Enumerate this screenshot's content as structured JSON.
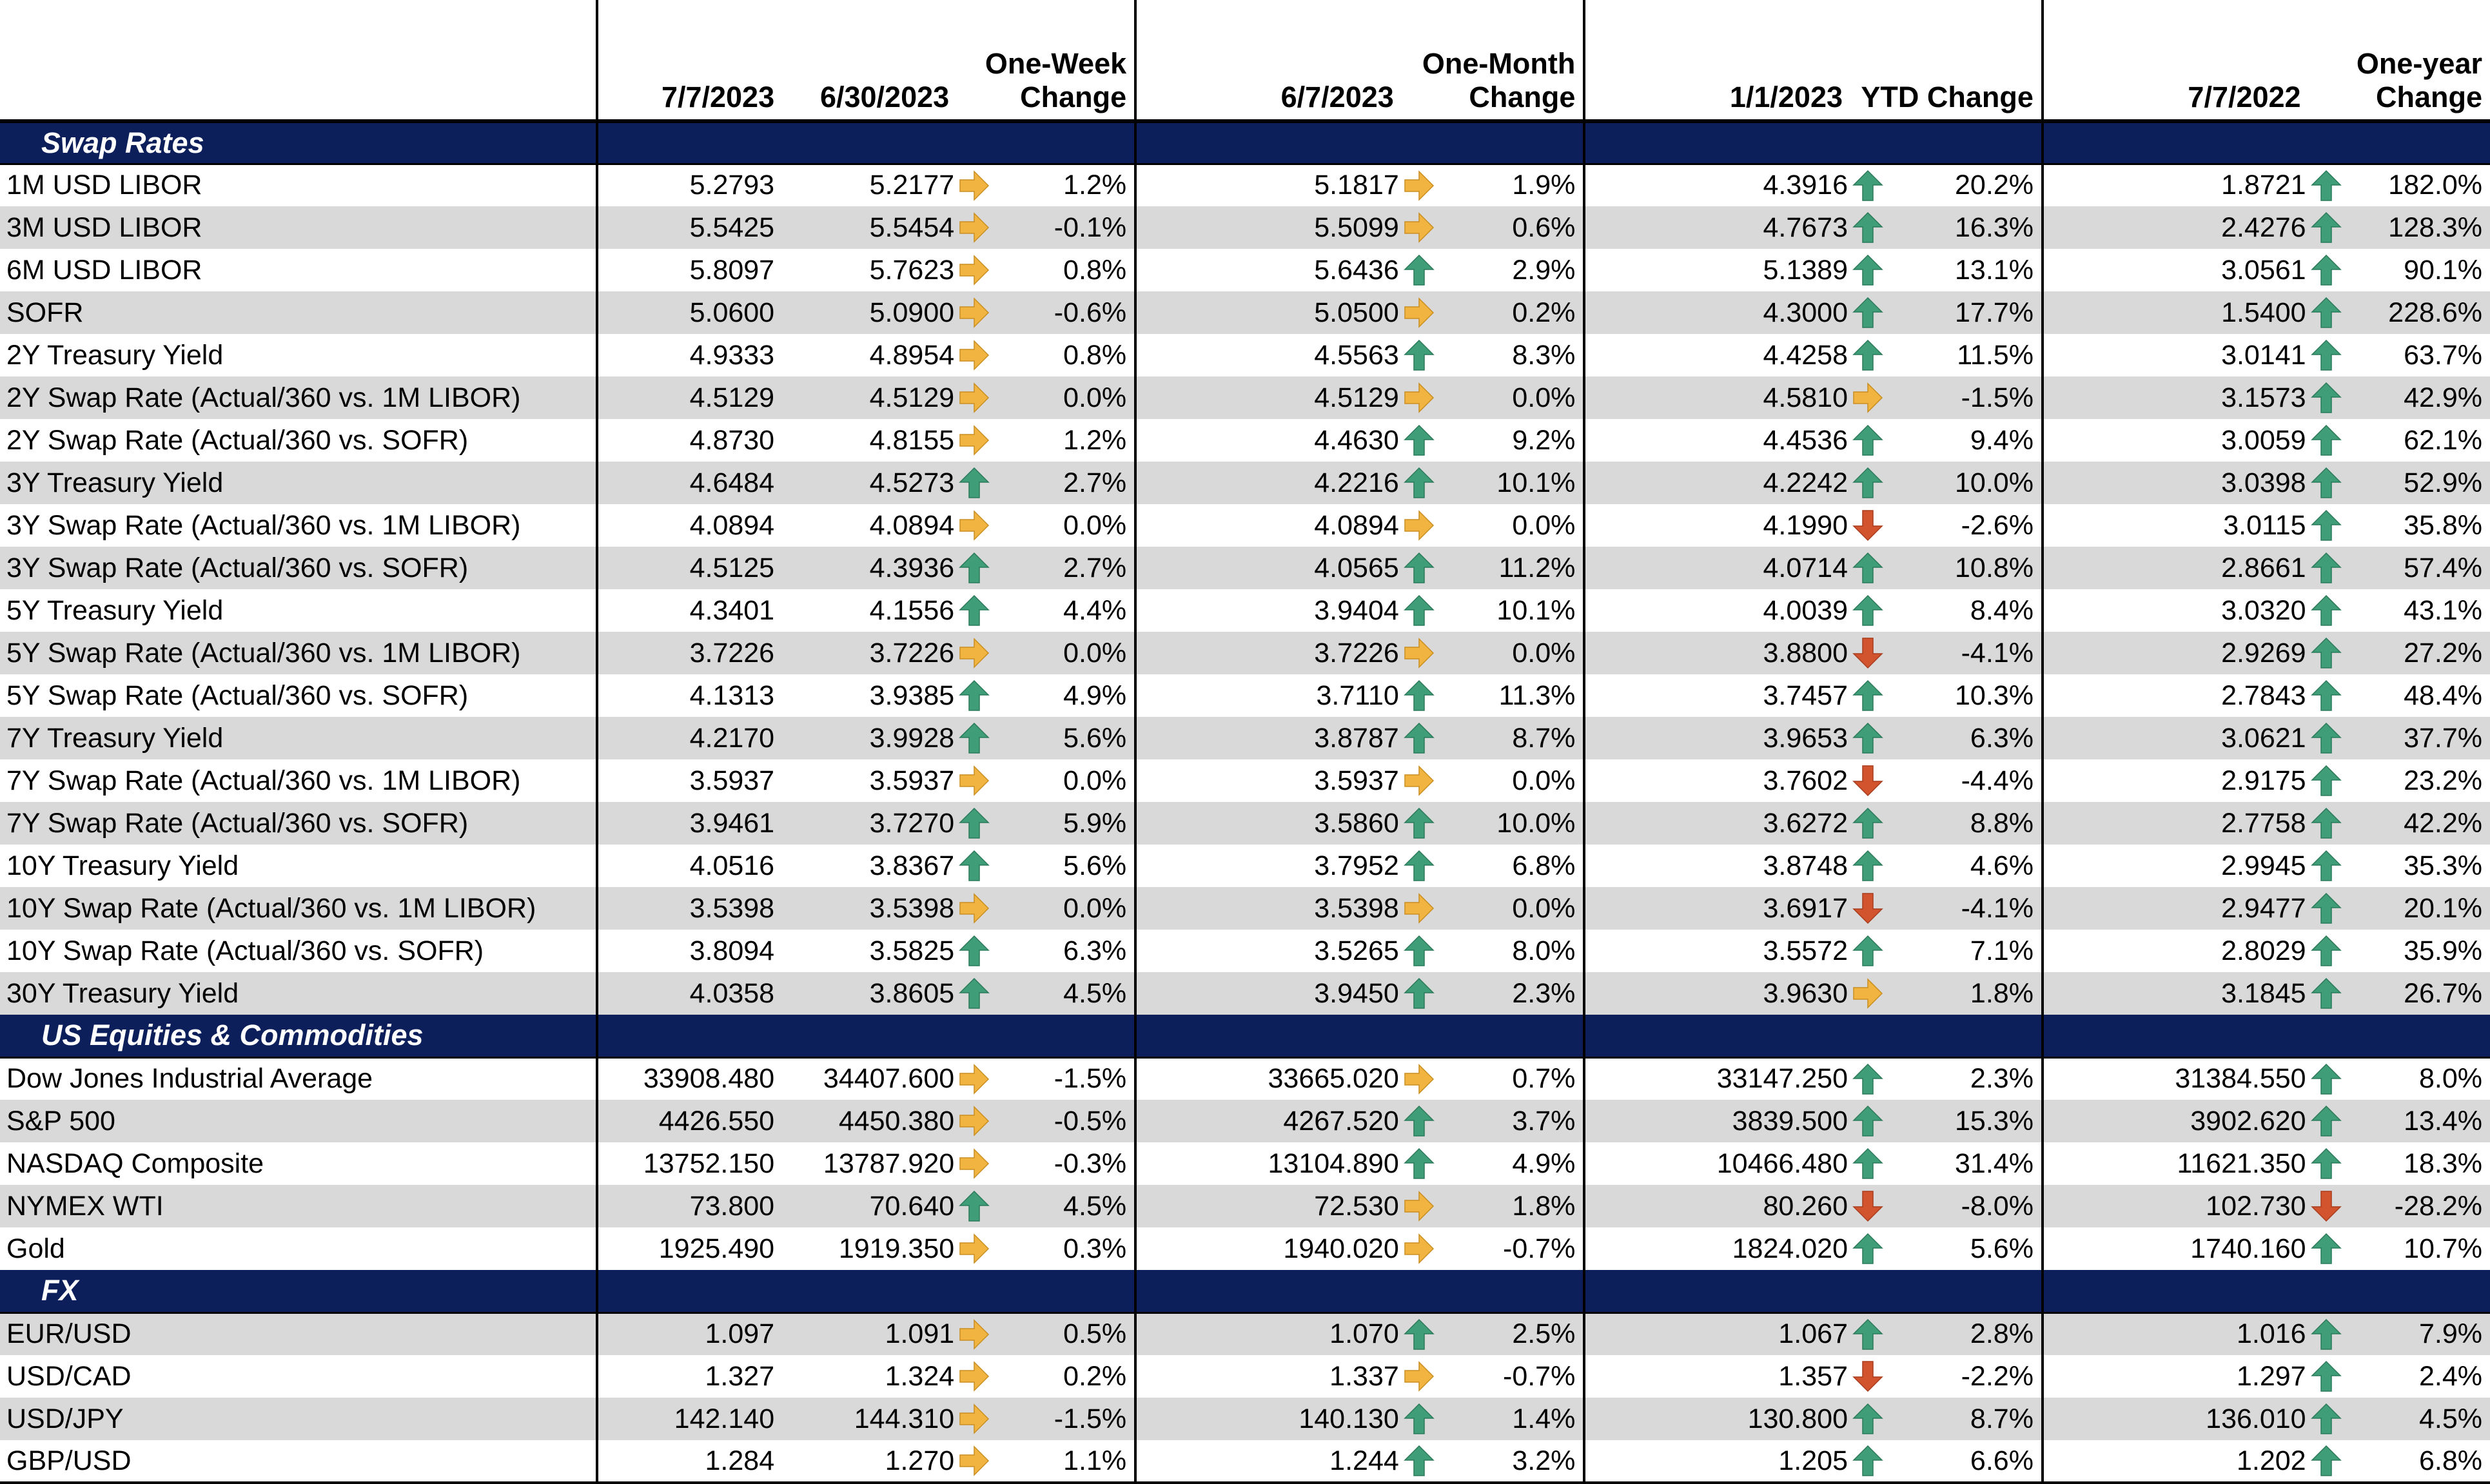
{
  "header": {
    "c1": "7/7/2023",
    "c2": "6/30/2023",
    "c3_line1": "One-Week",
    "c3_line2": "Change",
    "c4": "6/7/2023",
    "c5_line1": "One-Month",
    "c5_line2": "Change",
    "c6": "1/1/2023",
    "c7": "YTD Change",
    "c8": "7/7/2022",
    "c9_line1": "One-year",
    "c9_line2": "Change"
  },
  "colors": {
    "section_bg": "#0c1f5b",
    "alt_row_bg": "#d9d9d9",
    "up_arrow": "#3f9e78",
    "down_arrow": "#d2542f",
    "side_arrow": "#f2b441"
  },
  "icons": {
    "up": "up-arrow-icon",
    "down": "down-arrow-icon",
    "side": "right-arrow-icon"
  },
  "sections": [
    {
      "title": "Swap Rates",
      "rows": [
        {
          "label": "1M USD LIBOR",
          "v": "5.2793",
          "w": "5.2177",
          "wa": "side",
          "wc": "1.2%",
          "m": "5.1817",
          "ma": "side",
          "mc": "1.9%",
          "y": "4.3916",
          "ya": "up",
          "yc": "20.2%",
          "o": "1.8721",
          "oa": "up",
          "oc": "182.0%"
        },
        {
          "label": "3M USD LIBOR",
          "v": "5.5425",
          "w": "5.5454",
          "wa": "side",
          "wc": "-0.1%",
          "m": "5.5099",
          "ma": "side",
          "mc": "0.6%",
          "y": "4.7673",
          "ya": "up",
          "yc": "16.3%",
          "o": "2.4276",
          "oa": "up",
          "oc": "128.3%"
        },
        {
          "label": "6M USD LIBOR",
          "v": "5.8097",
          "w": "5.7623",
          "wa": "side",
          "wc": "0.8%",
          "m": "5.6436",
          "ma": "up",
          "mc": "2.9%",
          "y": "5.1389",
          "ya": "up",
          "yc": "13.1%",
          "o": "3.0561",
          "oa": "up",
          "oc": "90.1%"
        },
        {
          "label": "SOFR",
          "v": "5.0600",
          "w": "5.0900",
          "wa": "side",
          "wc": "-0.6%",
          "m": "5.0500",
          "ma": "side",
          "mc": "0.2%",
          "y": "4.3000",
          "ya": "up",
          "yc": "17.7%",
          "o": "1.5400",
          "oa": "up",
          "oc": "228.6%"
        },
        {
          "label": "2Y Treasury Yield",
          "v": "4.9333",
          "w": "4.8954",
          "wa": "side",
          "wc": "0.8%",
          "m": "4.5563",
          "ma": "up",
          "mc": "8.3%",
          "y": "4.4258",
          "ya": "up",
          "yc": "11.5%",
          "o": "3.0141",
          "oa": "up",
          "oc": "63.7%"
        },
        {
          "label": "2Y Swap Rate (Actual/360 vs. 1M LIBOR)",
          "v": "4.5129",
          "w": "4.5129",
          "wa": "side",
          "wc": "0.0%",
          "m": "4.5129",
          "ma": "side",
          "mc": "0.0%",
          "y": "4.5810",
          "ya": "side",
          "yc": "-1.5%",
          "o": "3.1573",
          "oa": "up",
          "oc": "42.9%"
        },
        {
          "label": "2Y Swap Rate (Actual/360 vs. SOFR)",
          "v": "4.8730",
          "w": "4.8155",
          "wa": "side",
          "wc": "1.2%",
          "m": "4.4630",
          "ma": "up",
          "mc": "9.2%",
          "y": "4.4536",
          "ya": "up",
          "yc": "9.4%",
          "o": "3.0059",
          "oa": "up",
          "oc": "62.1%"
        },
        {
          "label": "3Y Treasury Yield",
          "v": "4.6484",
          "w": "4.5273",
          "wa": "up",
          "wc": "2.7%",
          "m": "4.2216",
          "ma": "up",
          "mc": "10.1%",
          "y": "4.2242",
          "ya": "up",
          "yc": "10.0%",
          "o": "3.0398",
          "oa": "up",
          "oc": "52.9%"
        },
        {
          "label": "3Y Swap Rate (Actual/360 vs. 1M LIBOR)",
          "v": "4.0894",
          "w": "4.0894",
          "wa": "side",
          "wc": "0.0%",
          "m": "4.0894",
          "ma": "side",
          "mc": "0.0%",
          "y": "4.1990",
          "ya": "down",
          "yc": "-2.6%",
          "o": "3.0115",
          "oa": "up",
          "oc": "35.8%"
        },
        {
          "label": "3Y Swap Rate (Actual/360 vs. SOFR)",
          "v": "4.5125",
          "w": "4.3936",
          "wa": "up",
          "wc": "2.7%",
          "m": "4.0565",
          "ma": "up",
          "mc": "11.2%",
          "y": "4.0714",
          "ya": "up",
          "yc": "10.8%",
          "o": "2.8661",
          "oa": "up",
          "oc": "57.4%"
        },
        {
          "label": "5Y Treasury Yield",
          "v": "4.3401",
          "w": "4.1556",
          "wa": "up",
          "wc": "4.4%",
          "m": "3.9404",
          "ma": "up",
          "mc": "10.1%",
          "y": "4.0039",
          "ya": "up",
          "yc": "8.4%",
          "o": "3.0320",
          "oa": "up",
          "oc": "43.1%"
        },
        {
          "label": "5Y Swap Rate (Actual/360 vs. 1M LIBOR)",
          "v": "3.7226",
          "w": "3.7226",
          "wa": "side",
          "wc": "0.0%",
          "m": "3.7226",
          "ma": "side",
          "mc": "0.0%",
          "y": "3.8800",
          "ya": "down",
          "yc": "-4.1%",
          "o": "2.9269",
          "oa": "up",
          "oc": "27.2%"
        },
        {
          "label": "5Y Swap Rate (Actual/360 vs. SOFR)",
          "v": "4.1313",
          "w": "3.9385",
          "wa": "up",
          "wc": "4.9%",
          "m": "3.7110",
          "ma": "up",
          "mc": "11.3%",
          "y": "3.7457",
          "ya": "up",
          "yc": "10.3%",
          "o": "2.7843",
          "oa": "up",
          "oc": "48.4%"
        },
        {
          "label": "7Y Treasury Yield",
          "v": "4.2170",
          "w": "3.9928",
          "wa": "up",
          "wc": "5.6%",
          "m": "3.8787",
          "ma": "up",
          "mc": "8.7%",
          "y": "3.9653",
          "ya": "up",
          "yc": "6.3%",
          "o": "3.0621",
          "oa": "up",
          "oc": "37.7%"
        },
        {
          "label": "7Y Swap Rate (Actual/360 vs. 1M LIBOR)",
          "v": "3.5937",
          "w": "3.5937",
          "wa": "side",
          "wc": "0.0%",
          "m": "3.5937",
          "ma": "side",
          "mc": "0.0%",
          "y": "3.7602",
          "ya": "down",
          "yc": "-4.4%",
          "o": "2.9175",
          "oa": "up",
          "oc": "23.2%"
        },
        {
          "label": "7Y Swap Rate (Actual/360 vs. SOFR)",
          "v": "3.9461",
          "w": "3.7270",
          "wa": "up",
          "wc": "5.9%",
          "m": "3.5860",
          "ma": "up",
          "mc": "10.0%",
          "y": "3.6272",
          "ya": "up",
          "yc": "8.8%",
          "o": "2.7758",
          "oa": "up",
          "oc": "42.2%"
        },
        {
          "label": "10Y Treasury Yield",
          "v": "4.0516",
          "w": "3.8367",
          "wa": "up",
          "wc": "5.6%",
          "m": "3.7952",
          "ma": "up",
          "mc": "6.8%",
          "y": "3.8748",
          "ya": "up",
          "yc": "4.6%",
          "o": "2.9945",
          "oa": "up",
          "oc": "35.3%"
        },
        {
          "label": "10Y Swap Rate (Actual/360 vs. 1M LIBOR)",
          "v": "3.5398",
          "w": "3.5398",
          "wa": "side",
          "wc": "0.0%",
          "m": "3.5398",
          "ma": "side",
          "mc": "0.0%",
          "y": "3.6917",
          "ya": "down",
          "yc": "-4.1%",
          "o": "2.9477",
          "oa": "up",
          "oc": "20.1%"
        },
        {
          "label": "10Y Swap Rate (Actual/360 vs. SOFR)",
          "v": "3.8094",
          "w": "3.5825",
          "wa": "up",
          "wc": "6.3%",
          "m": "3.5265",
          "ma": "up",
          "mc": "8.0%",
          "y": "3.5572",
          "ya": "up",
          "yc": "7.1%",
          "o": "2.8029",
          "oa": "up",
          "oc": "35.9%"
        },
        {
          "label": "30Y Treasury Yield",
          "v": "4.0358",
          "w": "3.8605",
          "wa": "up",
          "wc": "4.5%",
          "m": "3.9450",
          "ma": "up",
          "mc": "2.3%",
          "y": "3.9630",
          "ya": "side",
          "yc": "1.8%",
          "o": "3.1845",
          "oa": "up",
          "oc": "26.7%"
        }
      ]
    },
    {
      "title": "US Equities & Commodities",
      "rows": [
        {
          "label": "Dow Jones Industrial Average",
          "v": "33908.480",
          "w": "34407.600",
          "wa": "side",
          "wc": "-1.5%",
          "m": "33665.020",
          "ma": "side",
          "mc": "0.7%",
          "y": "33147.250",
          "ya": "up",
          "yc": "2.3%",
          "o": "31384.550",
          "oa": "up",
          "oc": "8.0%"
        },
        {
          "label": "S&P 500",
          "v": "4426.550",
          "w": "4450.380",
          "wa": "side",
          "wc": "-0.5%",
          "m": "4267.520",
          "ma": "up",
          "mc": "3.7%",
          "y": "3839.500",
          "ya": "up",
          "yc": "15.3%",
          "o": "3902.620",
          "oa": "up",
          "oc": "13.4%"
        },
        {
          "label": "NASDAQ Composite",
          "v": "13752.150",
          "w": "13787.920",
          "wa": "side",
          "wc": "-0.3%",
          "m": "13104.890",
          "ma": "up",
          "mc": "4.9%",
          "y": "10466.480",
          "ya": "up",
          "yc": "31.4%",
          "o": "11621.350",
          "oa": "up",
          "oc": "18.3%"
        },
        {
          "label": "NYMEX WTI",
          "v": "73.800",
          "w": "70.640",
          "wa": "up",
          "wc": "4.5%",
          "m": "72.530",
          "ma": "side",
          "mc": "1.8%",
          "y": "80.260",
          "ya": "down",
          "yc": "-8.0%",
          "o": "102.730",
          "oa": "down",
          "oc": "-28.2%"
        },
        {
          "label": "Gold",
          "v": "1925.490",
          "w": "1919.350",
          "wa": "side",
          "wc": "0.3%",
          "m": "1940.020",
          "ma": "side",
          "mc": "-0.7%",
          "y": "1824.020",
          "ya": "up",
          "yc": "5.6%",
          "o": "1740.160",
          "oa": "up",
          "oc": "10.7%"
        }
      ]
    },
    {
      "title": "FX",
      "rows": [
        {
          "label": "EUR/USD",
          "v": "1.097",
          "w": "1.091",
          "wa": "side",
          "wc": "0.5%",
          "m": "1.070",
          "ma": "up",
          "mc": "2.5%",
          "y": "1.067",
          "ya": "up",
          "yc": "2.8%",
          "o": "1.016",
          "oa": "up",
          "oc": "7.9%"
        },
        {
          "label": "USD/CAD",
          "v": "1.327",
          "w": "1.324",
          "wa": "side",
          "wc": "0.2%",
          "m": "1.337",
          "ma": "side",
          "mc": "-0.7%",
          "y": "1.357",
          "ya": "down",
          "yc": "-2.2%",
          "o": "1.297",
          "oa": "up",
          "oc": "2.4%"
        },
        {
          "label": "USD/JPY",
          "v": "142.140",
          "w": "144.310",
          "wa": "side",
          "wc": "-1.5%",
          "m": "140.130",
          "ma": "up",
          "mc": "1.4%",
          "y": "130.800",
          "ya": "up",
          "yc": "8.7%",
          "o": "136.010",
          "oa": "up",
          "oc": "4.5%"
        },
        {
          "label": "GBP/USD",
          "v": "1.284",
          "w": "1.270",
          "wa": "side",
          "wc": "1.1%",
          "m": "1.244",
          "ma": "up",
          "mc": "3.2%",
          "y": "1.205",
          "ya": "up",
          "yc": "6.6%",
          "o": "1.202",
          "oa": "up",
          "oc": "6.8%"
        }
      ]
    }
  ]
}
